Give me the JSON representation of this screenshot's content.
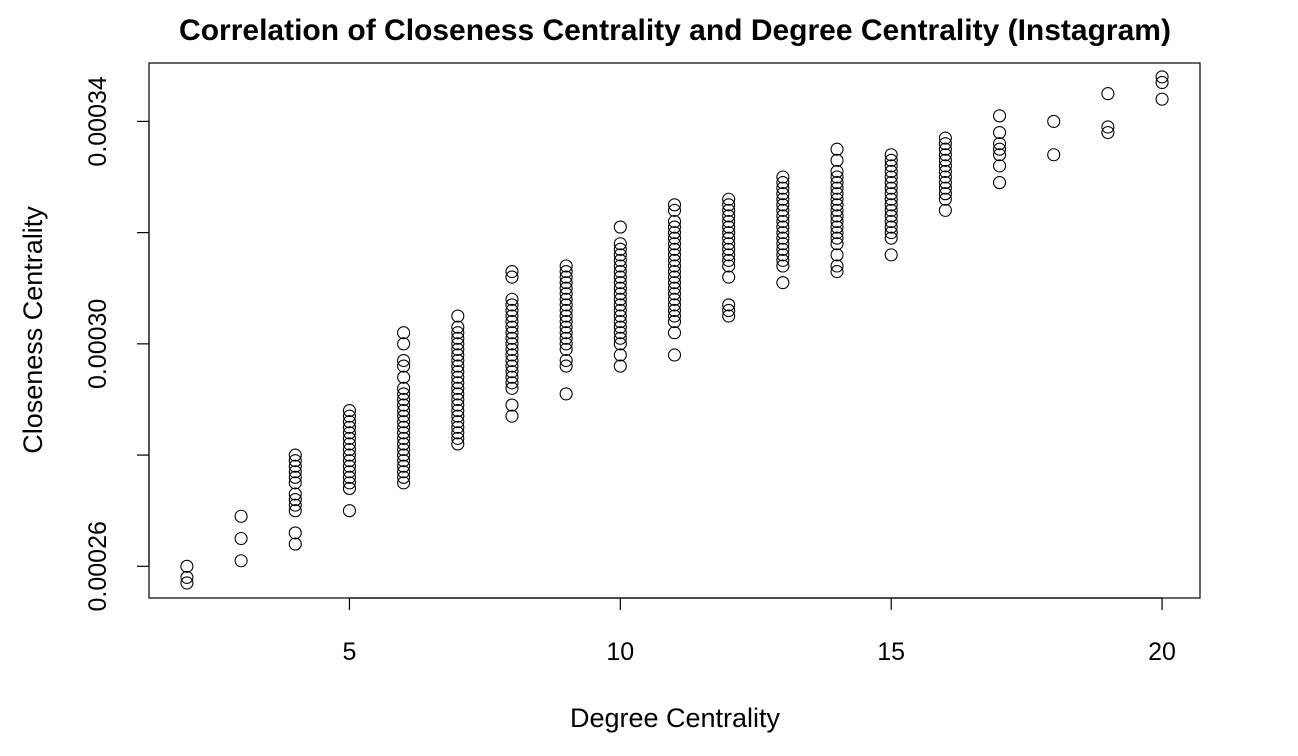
{
  "chart_data": {
    "type": "scatter",
    "title": "Correlation of Closeness Centrality and Degree Centrality (Instagram)",
    "xlabel": "Degree Centrality",
    "ylabel": "Closeness Centrality",
    "xlim": [
      1.3,
      20.7
    ],
    "ylim": [
      0.0002543,
      0.0003505
    ],
    "xticks": [
      5,
      10,
      15,
      20
    ],
    "yticks": [
      0.00026,
      0.00028,
      0.0003,
      0.00032,
      0.00034
    ],
    "ytick_labels": [
      "0.00026",
      "",
      "0.00030",
      "",
      "0.00034"
    ],
    "grid": false,
    "legend": "none",
    "point_groups": [
      {
        "x": 2,
        "y": [
          0.00026,
          0.000258,
          0.000257
        ]
      },
      {
        "x": 3,
        "y": [
          0.000269,
          0.000265,
          0.000261
        ]
      },
      {
        "x": 4,
        "y": [
          0.00028,
          0.000279,
          0.000278,
          0.000277,
          0.000276,
          0.000275,
          0.000273,
          0.000272,
          0.000271,
          0.00027,
          0.000266,
          0.000264
        ]
      },
      {
        "x": 5,
        "y": [
          0.000288,
          0.000287,
          0.000286,
          0.000285,
          0.000284,
          0.000283,
          0.000282,
          0.000281,
          0.00028,
          0.000279,
          0.000278,
          0.000277,
          0.000276,
          0.000275,
          0.000274,
          0.00027
        ]
      },
      {
        "x": 6,
        "y": [
          0.000302,
          0.0003,
          0.000297,
          0.000296,
          0.000294,
          0.000292,
          0.000291,
          0.00029,
          0.000289,
          0.000288,
          0.000287,
          0.000286,
          0.000285,
          0.000284,
          0.000283,
          0.000282,
          0.000281,
          0.00028,
          0.000279,
          0.000278,
          0.000277,
          0.000276,
          0.000275
        ]
      },
      {
        "x": 7,
        "y": [
          0.000305,
          0.000303,
          0.000302,
          0.000301,
          0.0003,
          0.000299,
          0.000298,
          0.000297,
          0.000296,
          0.000295,
          0.000294,
          0.000293,
          0.000292,
          0.000291,
          0.00029,
          0.000289,
          0.000288,
          0.000287,
          0.000286,
          0.000285,
          0.000284,
          0.000283,
          0.000282
        ]
      },
      {
        "x": 8,
        "y": [
          0.000313,
          0.000312,
          0.000308,
          0.000307,
          0.000306,
          0.000305,
          0.000304,
          0.000303,
          0.000302,
          0.000301,
          0.0003,
          0.000299,
          0.000298,
          0.000297,
          0.000296,
          0.000295,
          0.000294,
          0.000293,
          0.000292,
          0.000289,
          0.000287
        ]
      },
      {
        "x": 9,
        "y": [
          0.000314,
          0.000313,
          0.000312,
          0.000311,
          0.00031,
          0.000309,
          0.000308,
          0.000307,
          0.000306,
          0.000305,
          0.000304,
          0.000303,
          0.000302,
          0.000301,
          0.0003,
          0.000299,
          0.000297,
          0.000296,
          0.000291
        ]
      },
      {
        "x": 10,
        "y": [
          0.000321,
          0.000318,
          0.000317,
          0.000316,
          0.000315,
          0.000314,
          0.000313,
          0.000312,
          0.000311,
          0.00031,
          0.000309,
          0.000308,
          0.000307,
          0.000306,
          0.000305,
          0.000304,
          0.000303,
          0.000302,
          0.000301,
          0.0003,
          0.000298,
          0.000296
        ]
      },
      {
        "x": 11,
        "y": [
          0.000325,
          0.000324,
          0.000322,
          0.000321,
          0.00032,
          0.000319,
          0.000318,
          0.000317,
          0.000316,
          0.000315,
          0.000314,
          0.000313,
          0.000312,
          0.000311,
          0.00031,
          0.000309,
          0.000308,
          0.000307,
          0.000306,
          0.000305,
          0.000304,
          0.000302,
          0.000298
        ]
      },
      {
        "x": 12,
        "y": [
          0.000326,
          0.000325,
          0.000324,
          0.000323,
          0.000322,
          0.000321,
          0.00032,
          0.000319,
          0.000318,
          0.000317,
          0.000316,
          0.000315,
          0.000314,
          0.000312,
          0.000307,
          0.000306,
          0.000305
        ]
      },
      {
        "x": 13,
        "y": [
          0.00033,
          0.000329,
          0.000328,
          0.000327,
          0.000326,
          0.000325,
          0.000324,
          0.000323,
          0.000322,
          0.000321,
          0.00032,
          0.000319,
          0.000318,
          0.000317,
          0.000316,
          0.000315,
          0.000314,
          0.000311
        ]
      },
      {
        "x": 14,
        "y": [
          0.000335,
          0.000333,
          0.000331,
          0.00033,
          0.000329,
          0.000328,
          0.000327,
          0.000326,
          0.000325,
          0.000324,
          0.000323,
          0.000322,
          0.000321,
          0.00032,
          0.000319,
          0.000318,
          0.000316,
          0.000314,
          0.000313
        ]
      },
      {
        "x": 15,
        "y": [
          0.000334,
          0.000333,
          0.000332,
          0.000331,
          0.00033,
          0.000329,
          0.000328,
          0.000327,
          0.000326,
          0.000325,
          0.000324,
          0.000323,
          0.000322,
          0.000321,
          0.00032,
          0.000319,
          0.000316
        ]
      },
      {
        "x": 16,
        "y": [
          0.000337,
          0.000336,
          0.000335,
          0.000334,
          0.000333,
          0.000332,
          0.000331,
          0.00033,
          0.000329,
          0.000328,
          0.000327,
          0.000326,
          0.000324
        ]
      },
      {
        "x": 17,
        "y": [
          0.000341,
          0.000338,
          0.000336,
          0.000335,
          0.000334,
          0.000332,
          0.000329
        ]
      },
      {
        "x": 18,
        "y": [
          0.00034,
          0.000334
        ]
      },
      {
        "x": 19,
        "y": [
          0.000345,
          0.000339,
          0.000338
        ]
      },
      {
        "x": 20,
        "y": [
          0.000348,
          0.000347,
          0.000344
        ]
      }
    ]
  }
}
